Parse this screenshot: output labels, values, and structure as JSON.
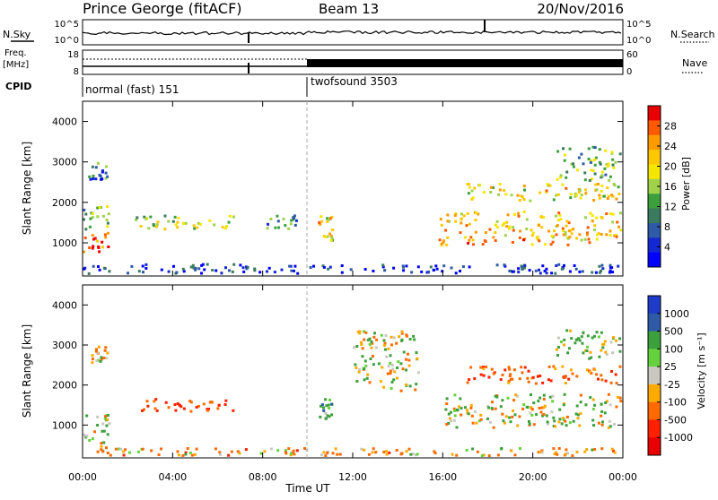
{
  "header": {
    "station": "Prince George (fitACF)",
    "beam": "Beam 13",
    "date": "20/Nov/2016"
  },
  "top_panels": {
    "nsky_label": "N.Sky",
    "nsearch_label": "N.Search",
    "count_ticks": [
      "10^5",
      "10^0"
    ],
    "freq_label_1": "Freq.",
    "freq_label_2": "[MHz]",
    "freq_ticks": [
      "18",
      "8"
    ],
    "nave_label": "Nave",
    "nave_ticks": [
      "60",
      "0"
    ],
    "cpid_label": "CPID",
    "cpid_segments": [
      {
        "name": "normal (fast) 151",
        "start_hour": 0
      },
      {
        "name": "twofsound 3503",
        "start_hour": 10
      }
    ]
  },
  "power_panel": {
    "ylabel": "Slant Range [km]",
    "colorbar_label": "Power [dB]",
    "colorbar_ticks": [
      "28",
      "24",
      "20",
      "16",
      "12",
      "8",
      "4"
    ],
    "colorbar_colors": [
      "#e80000",
      "#ff5a00",
      "#ff9a00",
      "#ffc800",
      "#f5e600",
      "#a0d24a",
      "#3ca03c",
      "#3a7a5e",
      "#2e5aa8",
      "#1428d2",
      "#0000ff"
    ]
  },
  "velocity_panel": {
    "ylabel": "Slant Range [km]",
    "colorbar_label": "Velocity [m s⁻¹]",
    "colorbar_ticks": [
      "1000",
      "500",
      "100",
      "25",
      "-25",
      "-100",
      "-500",
      "-1000"
    ],
    "colorbar_colors": [
      "#1e3cc8",
      "#2e5aa8",
      "#3ca03c",
      "#64d23c",
      "#c8c8c0",
      "#ffaa00",
      "#ff6a00",
      "#ff2000",
      "#e80000"
    ]
  },
  "axes": {
    "xlabel": "Time UT",
    "xticks": [
      "00:00",
      "04:00",
      "08:00",
      "12:00",
      "16:00",
      "20:00",
      "00:00"
    ],
    "yticks": [
      "4000",
      "3000",
      "2000",
      "1000"
    ]
  },
  "chart_data": {
    "type": "heatmap",
    "x_range_hours": [
      0,
      24
    ],
    "y_range_km": [
      180,
      4500
    ],
    "grid": false,
    "power_regions": [
      {
        "t0": 0.0,
        "t1": 1.3,
        "r0": 700,
        "r1": 1300,
        "value_db": 26
      },
      {
        "t0": 0.0,
        "t1": 1.3,
        "r0": 1300,
        "r1": 2000,
        "value_db": 14
      },
      {
        "t0": 0.2,
        "t1": 1.2,
        "r0": 2500,
        "r1": 3000,
        "value_db": 10
      },
      {
        "t0": 2.2,
        "t1": 6.8,
        "r0": 1300,
        "r1": 1700,
        "value_db": 16
      },
      {
        "t0": 8.0,
        "t1": 9.6,
        "r0": 1300,
        "r1": 1700,
        "value_db": 12
      },
      {
        "t0": 10.4,
        "t1": 11.2,
        "r0": 1000,
        "r1": 1700,
        "value_db": 20
      },
      {
        "t0": 15.8,
        "t1": 24.0,
        "r0": 900,
        "r1": 1800,
        "value_db": 22
      },
      {
        "t0": 17.0,
        "t1": 24.0,
        "r0": 2000,
        "r1": 2500,
        "value_db": 20
      },
      {
        "t0": 21.0,
        "t1": 24.0,
        "r0": 2500,
        "r1": 3400,
        "value_db": 14
      },
      {
        "t0": 0.0,
        "t1": 24.0,
        "r0": 200,
        "r1": 500,
        "value_db": 6
      }
    ],
    "velocity_regions": [
      {
        "t0": 0.0,
        "t1": 1.3,
        "r0": 300,
        "r1": 1300,
        "value_ms": 0
      },
      {
        "t0": 0.3,
        "t1": 1.2,
        "r0": 2500,
        "r1": 3000,
        "value_ms": -100
      },
      {
        "t0": 2.5,
        "t1": 6.8,
        "r0": 1300,
        "r1": 1700,
        "value_ms": -300
      },
      {
        "t0": 10.4,
        "t1": 11.2,
        "r0": 1100,
        "r1": 1700,
        "value_ms": 200
      },
      {
        "t0": 12.0,
        "t1": 15.0,
        "r0": 1800,
        "r1": 3400,
        "value_ms": 0
      },
      {
        "t0": 15.8,
        "t1": 24.0,
        "r0": 900,
        "r1": 1800,
        "value_ms": 0
      },
      {
        "t0": 17.0,
        "t1": 24.0,
        "r0": 2000,
        "r1": 2500,
        "value_ms": -250
      },
      {
        "t0": 21.0,
        "t1": 24.0,
        "r0": 2600,
        "r1": 3400,
        "value_ms": 100
      },
      {
        "t0": 0.0,
        "t1": 24.0,
        "r0": 200,
        "r1": 450,
        "value_ms": -120
      }
    ]
  }
}
